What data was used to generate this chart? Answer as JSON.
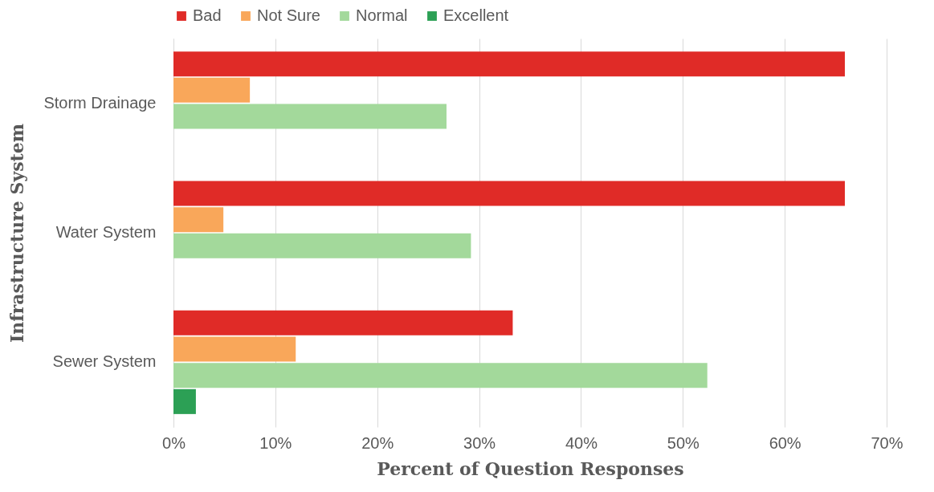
{
  "chart_data": {
    "type": "bar",
    "orientation": "horizontal",
    "xlabel": "Percent of Question Responses",
    "ylabel": "Infrastructure System",
    "categories": [
      "Storm Drainage",
      "Water System",
      "Sewer System"
    ],
    "series": [
      {
        "name": "Bad",
        "color": "#e02b27",
        "values": [
          65.9,
          65.9,
          33.3
        ]
      },
      {
        "name": "Not Sure",
        "color": "#f9a75a",
        "values": [
          7.5,
          4.9,
          12.0
        ]
      },
      {
        "name": "Normal",
        "color": "#a3d99b",
        "values": [
          26.8,
          29.2,
          52.4
        ]
      },
      {
        "name": "Excellent",
        "color": "#2ca055",
        "values": [
          0,
          0,
          2.2
        ]
      }
    ],
    "xlim": [
      0,
      70
    ],
    "xticks": [
      {
        "value": 0,
        "label": "0%"
      },
      {
        "value": 10,
        "label": "10%"
      },
      {
        "value": 20,
        "label": "20%"
      },
      {
        "value": 30,
        "label": "30%"
      },
      {
        "value": 40,
        "label": "40%"
      },
      {
        "value": 50,
        "label": "50%"
      },
      {
        "value": 60,
        "label": "60%"
      },
      {
        "value": 70,
        "label": "70%"
      }
    ],
    "grid": "x",
    "legend": "top"
  }
}
